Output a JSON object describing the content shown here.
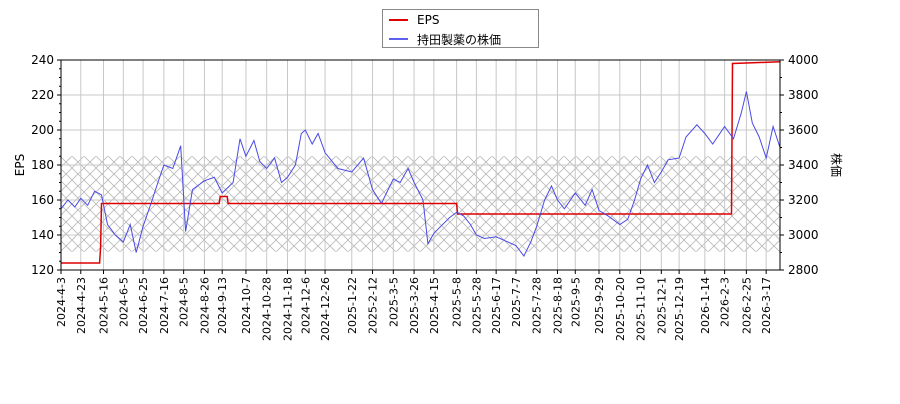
{
  "legend": {
    "items": [
      {
        "label": "EPS",
        "color": "#e00000"
      },
      {
        "label": "持田製薬の株価",
        "color": "#4040e0"
      }
    ]
  },
  "axes": {
    "left_label": "EPS",
    "right_label": "株価"
  },
  "chart_data": {
    "type": "line",
    "title": "",
    "xlabel": "",
    "ylabel": "EPS",
    "y2label": "株価",
    "ylim": [
      120,
      240
    ],
    "y2lim": [
      2800,
      4000
    ],
    "yticks": [
      120,
      140,
      160,
      180,
      200,
      220,
      240
    ],
    "y2ticks": [
      2800,
      3000,
      3200,
      3400,
      3600,
      3800,
      4000
    ],
    "grid": true,
    "legend_position": "top-center",
    "shaded_band_right_axis": [
      2905,
      3450
    ],
    "categories": [
      "2024-4-3",
      "2024-4-23",
      "2024-5-16",
      "2024-6-5",
      "2024-6-25",
      "2024-7-16",
      "2024-8-5",
      "2024-8-26",
      "2024-9-13",
      "2024-10-7",
      "2024-10-28",
      "2024-11-18",
      "2024-12-6",
      "2024-12-26",
      "2025-1-22",
      "2025-2-12",
      "2025-3-5",
      "2025-3-26",
      "2025-4-15",
      "2025-5-8",
      "2025-5-28",
      "2025-6-17",
      "2025-7-7",
      "2025-7-28",
      "2025-8-18",
      "2025-9-5",
      "2025-9-29",
      "2025-10-20",
      "2025-11-10",
      "2025-12-1",
      "2025-12-19",
      "2026-1-14",
      "2026-2-3",
      "2026-2-25",
      "2026-3-17"
    ],
    "series": [
      {
        "name": "EPS",
        "axis": "left",
        "color": "#e00000",
        "points": [
          [
            "2024-4-3",
            124
          ],
          [
            "2024-5-12",
            124
          ],
          [
            "2024-5-13",
            133
          ],
          [
            "2024-5-14",
            158
          ],
          [
            "2024-9-10",
            158
          ],
          [
            "2024-9-11",
            162
          ],
          [
            "2024-9-18",
            162
          ],
          [
            "2024-9-19",
            158
          ],
          [
            "2025-5-8",
            158
          ],
          [
            "2025-5-9",
            152
          ],
          [
            "2026-2-10",
            152
          ],
          [
            "2026-2-11",
            238
          ],
          [
            "2026-3-31",
            239
          ]
        ]
      },
      {
        "name": "持田製薬の株価",
        "axis": "right",
        "color": "#4040e0",
        "points": [
          [
            "2024-4-3",
            3150
          ],
          [
            "2024-4-10",
            3200
          ],
          [
            "2024-4-17",
            3160
          ],
          [
            "2024-4-23",
            3210
          ],
          [
            "2024-4-30",
            3170
          ],
          [
            "2024-5-7",
            3250
          ],
          [
            "2024-5-14",
            3230
          ],
          [
            "2024-5-20",
            3060
          ],
          [
            "2024-5-28",
            3000
          ],
          [
            "2024-6-5",
            2960
          ],
          [
            "2024-6-12",
            3060
          ],
          [
            "2024-6-18",
            2900
          ],
          [
            "2024-6-25",
            3050
          ],
          [
            "2024-7-3",
            3180
          ],
          [
            "2024-7-10",
            3300
          ],
          [
            "2024-7-16",
            3400
          ],
          [
            "2024-7-25",
            3380
          ],
          [
            "2024-8-2",
            3510
          ],
          [
            "2024-8-7",
            3020
          ],
          [
            "2024-8-14",
            3260
          ],
          [
            "2024-8-26",
            3310
          ],
          [
            "2024-9-5",
            3330
          ],
          [
            "2024-9-13",
            3240
          ],
          [
            "2024-9-24",
            3300
          ],
          [
            "2024-10-1",
            3550
          ],
          [
            "2024-10-7",
            3450
          ],
          [
            "2024-10-15",
            3540
          ],
          [
            "2024-10-21",
            3420
          ],
          [
            "2024-10-28",
            3380
          ],
          [
            "2024-11-5",
            3440
          ],
          [
            "2024-11-12",
            3300
          ],
          [
            "2024-11-18",
            3330
          ],
          [
            "2024-11-26",
            3400
          ],
          [
            "2024-12-2",
            3580
          ],
          [
            "2024-12-6",
            3600
          ],
          [
            "2024-12-13",
            3520
          ],
          [
            "2024-12-19",
            3580
          ],
          [
            "2024-12-26",
            3470
          ],
          [
            "2025-1-8",
            3380
          ],
          [
            "2025-1-22",
            3360
          ],
          [
            "2025-2-3",
            3440
          ],
          [
            "2025-2-12",
            3260
          ],
          [
            "2025-2-21",
            3180
          ],
          [
            "2025-3-5",
            3320
          ],
          [
            "2025-3-12",
            3300
          ],
          [
            "2025-3-20",
            3380
          ],
          [
            "2025-3-26",
            3300
          ],
          [
            "2025-4-4",
            3200
          ],
          [
            "2025-4-9",
            2950
          ],
          [
            "2025-4-15",
            3010
          ],
          [
            "2025-4-22",
            3050
          ],
          [
            "2025-5-1",
            3100
          ],
          [
            "2025-5-8",
            3130
          ],
          [
            "2025-5-15",
            3110
          ],
          [
            "2025-5-22",
            3060
          ],
          [
            "2025-5-28",
            3000
          ],
          [
            "2025-6-5",
            2980
          ],
          [
            "2025-6-17",
            2990
          ],
          [
            "2025-6-25",
            2970
          ],
          [
            "2025-7-7",
            2940
          ],
          [
            "2025-7-15",
            2880
          ],
          [
            "2025-7-22",
            2960
          ],
          [
            "2025-7-28",
            3050
          ],
          [
            "2025-8-5",
            3200
          ],
          [
            "2025-8-12",
            3280
          ],
          [
            "2025-8-18",
            3200
          ],
          [
            "2025-8-25",
            3150
          ],
          [
            "2025-9-5",
            3240
          ],
          [
            "2025-9-15",
            3170
          ],
          [
            "2025-9-22",
            3260
          ],
          [
            "2025-9-29",
            3140
          ],
          [
            "2025-10-8",
            3110
          ],
          [
            "2025-10-20",
            3060
          ],
          [
            "2025-10-28",
            3090
          ],
          [
            "2025-11-4",
            3200
          ],
          [
            "2025-11-10",
            3320
          ],
          [
            "2025-11-17",
            3400
          ],
          [
            "2025-11-24",
            3300
          ],
          [
            "2025-12-1",
            3360
          ],
          [
            "2025-12-8",
            3430
          ],
          [
            "2025-12-19",
            3440
          ],
          [
            "2025-12-26",
            3560
          ],
          [
            "2026-1-6",
            3630
          ],
          [
            "2026-1-14",
            3580
          ],
          [
            "2026-1-22",
            3520
          ],
          [
            "2026-2-3",
            3620
          ],
          [
            "2026-2-12",
            3550
          ],
          [
            "2026-2-20",
            3700
          ],
          [
            "2026-2-25",
            3820
          ],
          [
            "2026-3-3",
            3640
          ],
          [
            "2026-3-10",
            3560
          ],
          [
            "2026-3-17",
            3440
          ],
          [
            "2026-3-24",
            3620
          ],
          [
            "2026-3-31",
            3500
          ]
        ]
      }
    ]
  }
}
